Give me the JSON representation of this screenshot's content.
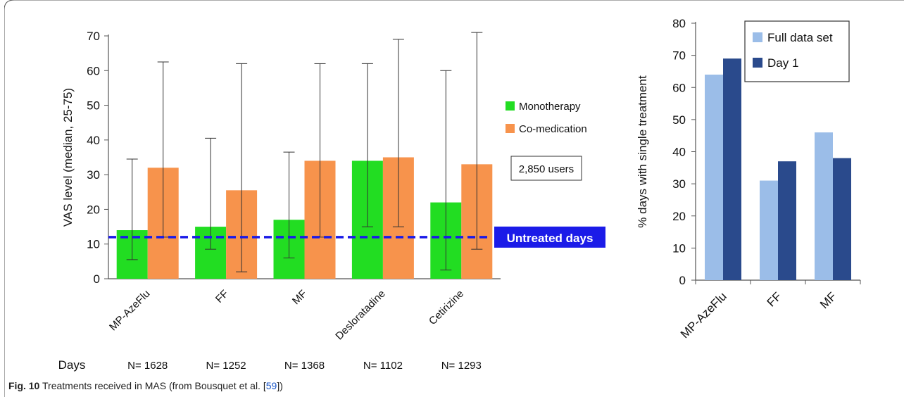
{
  "figure": {
    "caption_label": "Fig. 10",
    "caption_text": "Treatments received in MAS (from Bousquet et al. [",
    "caption_ref": "59",
    "caption_end": "])"
  },
  "chart_data": [
    {
      "type": "bar",
      "categories": [
        "MP-AzeFlu",
        "FF",
        "MF",
        "Desloratadine",
        "Cetirizine"
      ],
      "series": [
        {
          "name": "Monotherapy",
          "color": "#22dd22",
          "values": [
            14,
            15,
            17,
            34,
            22
          ],
          "err_low": [
            5.5,
            8.5,
            6,
            15,
            2.5
          ],
          "err_high": [
            34.5,
            40.5,
            36.5,
            62,
            60
          ]
        },
        {
          "name": "Co-medication",
          "color": "#f7934c",
          "values": [
            32,
            25.5,
            34,
            35,
            33
          ],
          "err_low": [
            12,
            2,
            12,
            15,
            8.5
          ],
          "err_high": [
            62.5,
            62,
            62,
            69,
            71
          ]
        }
      ],
      "ylabel": "VAS level (median, 25-75)",
      "ylim": [
        0,
        70
      ],
      "yticks": [
        0,
        10,
        20,
        30,
        40,
        50,
        60,
        70
      ],
      "reference_line": {
        "value": 12,
        "label": "Untreated days",
        "color": "#1b1be8"
      },
      "annotation": "2,850 users",
      "row_label": "Days",
      "n_labels": [
        "N= 1628",
        "N= 1252",
        "N= 1368",
        "N= 1102",
        "N= 1293"
      ],
      "legend_position": "right",
      "grid": false
    },
    {
      "type": "bar",
      "categories": [
        "MP-AzeFlu",
        "FF",
        "MF"
      ],
      "series": [
        {
          "name": "Full data set",
          "color": "#9bbde8",
          "values": [
            64,
            31,
            46
          ]
        },
        {
          "name": "Day 1",
          "color": "#2a4a8c",
          "values": [
            69,
            37,
            38
          ]
        }
      ],
      "ylabel": "% days with single treatment",
      "ylim": [
        0,
        80
      ],
      "yticks": [
        0,
        10,
        20,
        30,
        40,
        50,
        60,
        70,
        80
      ],
      "legend_position": "top-right",
      "grid": false
    }
  ]
}
